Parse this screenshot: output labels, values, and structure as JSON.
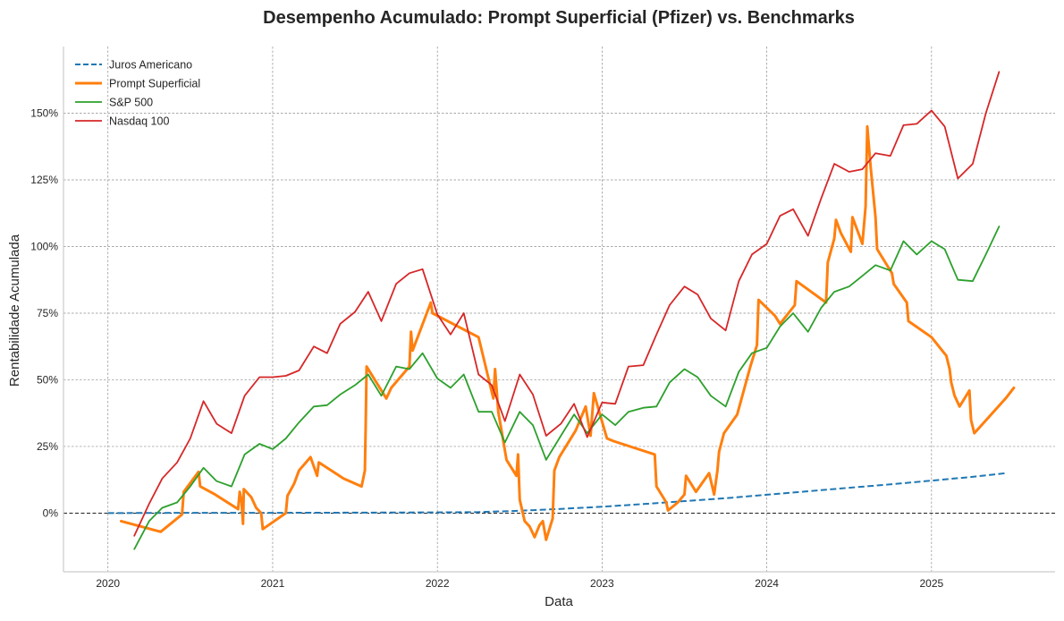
{
  "chart_data": {
    "type": "line",
    "title": "Desempenho Acumulado: Prompt Superficial (Pfizer) vs. Benchmarks",
    "xlabel": "Data",
    "ylabel": "Rentabilidade Acumulada",
    "x_ticks": [
      "2020",
      "2021",
      "2022",
      "2023",
      "2024",
      "2025"
    ],
    "y_ticks": [
      "0%",
      "25%",
      "50%",
      "75%",
      "100%",
      "125%",
      "150%"
    ],
    "y_tick_values": [
      0,
      25,
      50,
      75,
      100,
      125,
      150
    ],
    "xlim": [
      2019.73,
      2025.75
    ],
    "ylim": [
      -22,
      175
    ],
    "grid": true,
    "legend_position": "top-left",
    "reference_line": 0,
    "series": [
      {
        "name": "Juros Americano",
        "color": "#1f77b4",
        "style": "dashed",
        "width": 2,
        "points": [
          [
            2020.0,
            0
          ],
          [
            2020.5,
            0.1
          ],
          [
            2021.0,
            0.1
          ],
          [
            2021.5,
            0.2
          ],
          [
            2022.0,
            0.3
          ],
          [
            2022.25,
            0.4
          ],
          [
            2022.5,
            0.9
          ],
          [
            2022.75,
            1.6
          ],
          [
            2023.0,
            2.4
          ],
          [
            2023.25,
            3.4
          ],
          [
            2023.5,
            4.5
          ],
          [
            2023.75,
            5.6
          ],
          [
            2024.0,
            6.9
          ],
          [
            2024.25,
            8.2
          ],
          [
            2024.5,
            9.5
          ],
          [
            2024.75,
            10.8
          ],
          [
            2025.0,
            12.2
          ],
          [
            2025.25,
            13.6
          ],
          [
            2025.45,
            15.0
          ]
        ]
      },
      {
        "name": "Prompt Superficial",
        "color": "#ff7f0e",
        "style": "solid",
        "width": 3,
        "points": [
          [
            2020.08,
            -3
          ],
          [
            2020.32,
            -7
          ],
          [
            2020.45,
            -0.5
          ],
          [
            2020.46,
            8
          ],
          [
            2020.55,
            15.5
          ],
          [
            2020.56,
            10
          ],
          [
            2020.65,
            7
          ],
          [
            2020.79,
            1.5
          ],
          [
            2020.8,
            8
          ],
          [
            2020.81,
            5
          ],
          [
            2020.82,
            -4
          ],
          [
            2020.825,
            9
          ],
          [
            2020.87,
            6
          ],
          [
            2020.9,
            2
          ],
          [
            2020.93,
            0
          ],
          [
            2020.94,
            -6
          ],
          [
            2021.08,
            0
          ],
          [
            2021.09,
            6.5
          ],
          [
            2021.13,
            11
          ],
          [
            2021.16,
            16
          ],
          [
            2021.23,
            21
          ],
          [
            2021.27,
            14
          ],
          [
            2021.28,
            19
          ],
          [
            2021.33,
            17
          ],
          [
            2021.43,
            13
          ],
          [
            2021.54,
            10
          ],
          [
            2021.56,
            16
          ],
          [
            2021.565,
            33
          ],
          [
            2021.57,
            55
          ],
          [
            2021.63,
            49
          ],
          [
            2021.69,
            43
          ],
          [
            2021.72,
            47
          ],
          [
            2021.83,
            55
          ],
          [
            2021.84,
            68
          ],
          [
            2021.85,
            61
          ],
          [
            2021.96,
            79
          ],
          [
            2021.97,
            75
          ],
          [
            2022.25,
            66
          ],
          [
            2022.34,
            43
          ],
          [
            2022.35,
            54
          ],
          [
            2022.37,
            38
          ],
          [
            2022.42,
            20
          ],
          [
            2022.48,
            14
          ],
          [
            2022.49,
            22
          ],
          [
            2022.5,
            5
          ],
          [
            2022.53,
            -3
          ],
          [
            2022.56,
            -5
          ],
          [
            2022.59,
            -9
          ],
          [
            2022.62,
            -4.5
          ],
          [
            2022.64,
            -3
          ],
          [
            2022.66,
            -10
          ],
          [
            2022.7,
            -2
          ],
          [
            2022.71,
            16
          ],
          [
            2022.74,
            21
          ],
          [
            2022.84,
            31
          ],
          [
            2022.9,
            40
          ],
          [
            2022.93,
            29
          ],
          [
            2022.95,
            45
          ],
          [
            2023.02,
            30
          ],
          [
            2023.03,
            28
          ],
          [
            2023.07,
            27
          ],
          [
            2023.32,
            22
          ],
          [
            2023.33,
            10
          ],
          [
            2023.39,
            4
          ],
          [
            2023.4,
            1
          ],
          [
            2023.46,
            4
          ],
          [
            2023.5,
            7
          ],
          [
            2023.51,
            14
          ],
          [
            2023.57,
            8
          ],
          [
            2023.65,
            15
          ],
          [
            2023.68,
            7
          ],
          [
            2023.7,
            16
          ],
          [
            2023.71,
            23
          ],
          [
            2023.74,
            30
          ],
          [
            2023.82,
            37
          ],
          [
            2023.9,
            55
          ],
          [
            2023.94,
            63
          ],
          [
            2023.95,
            80
          ],
          [
            2024.05,
            74
          ],
          [
            2024.08,
            71
          ],
          [
            2024.17,
            78
          ],
          [
            2024.18,
            87
          ],
          [
            2024.36,
            79
          ],
          [
            2024.37,
            94
          ],
          [
            2024.41,
            103
          ],
          [
            2024.42,
            110
          ],
          [
            2024.45,
            105
          ],
          [
            2024.51,
            98
          ],
          [
            2024.52,
            111
          ],
          [
            2024.58,
            101
          ],
          [
            2024.6,
            115
          ],
          [
            2024.61,
            145
          ],
          [
            2024.63,
            130
          ],
          [
            2024.66,
            111
          ],
          [
            2024.67,
            99
          ],
          [
            2024.76,
            90
          ],
          [
            2024.77,
            86
          ],
          [
            2024.85,
            79
          ],
          [
            2024.86,
            72
          ],
          [
            2025.0,
            66
          ],
          [
            2025.09,
            59
          ],
          [
            2025.11,
            54
          ],
          [
            2025.12,
            49
          ],
          [
            2025.14,
            44
          ],
          [
            2025.17,
            40
          ],
          [
            2025.23,
            46
          ],
          [
            2025.24,
            35
          ],
          [
            2025.26,
            30
          ],
          [
            2025.45,
            43
          ],
          [
            2025.5,
            47
          ]
        ]
      },
      {
        "name": "S&P 500",
        "color": "#2ca02c",
        "style": "solid",
        "width": 1.8,
        "points": [
          [
            2020.16,
            -13.5
          ],
          [
            2020.25,
            -3
          ],
          [
            2020.33,
            2
          ],
          [
            2020.42,
            4
          ],
          [
            2020.5,
            10
          ],
          [
            2020.58,
            17
          ],
          [
            2020.66,
            12
          ],
          [
            2020.75,
            10
          ],
          [
            2020.83,
            22
          ],
          [
            2020.92,
            26
          ],
          [
            2021.0,
            24
          ],
          [
            2021.08,
            28
          ],
          [
            2021.16,
            34
          ],
          [
            2021.25,
            40
          ],
          [
            2021.33,
            40.5
          ],
          [
            2021.41,
            44.5
          ],
          [
            2021.5,
            48
          ],
          [
            2021.58,
            52
          ],
          [
            2021.66,
            44
          ],
          [
            2021.75,
            55
          ],
          [
            2021.83,
            54
          ],
          [
            2021.91,
            60
          ],
          [
            2022.0,
            50.5
          ],
          [
            2022.08,
            47
          ],
          [
            2022.16,
            52
          ],
          [
            2022.25,
            38
          ],
          [
            2022.33,
            38
          ],
          [
            2022.41,
            26.5
          ],
          [
            2022.5,
            38
          ],
          [
            2022.58,
            33
          ],
          [
            2022.66,
            20
          ],
          [
            2022.75,
            29
          ],
          [
            2022.83,
            37
          ],
          [
            2022.91,
            30
          ],
          [
            2023.0,
            37
          ],
          [
            2023.08,
            33
          ],
          [
            2023.16,
            38
          ],
          [
            2023.25,
            39.5
          ],
          [
            2023.33,
            40
          ],
          [
            2023.41,
            49
          ],
          [
            2023.5,
            54
          ],
          [
            2023.58,
            51
          ],
          [
            2023.66,
            44
          ],
          [
            2023.75,
            40
          ],
          [
            2023.83,
            53
          ],
          [
            2023.91,
            60
          ],
          [
            2024.0,
            62
          ],
          [
            2024.08,
            70
          ],
          [
            2024.16,
            75
          ],
          [
            2024.25,
            68
          ],
          [
            2024.33,
            77
          ],
          [
            2024.41,
            83
          ],
          [
            2024.5,
            85
          ],
          [
            2024.58,
            89
          ],
          [
            2024.66,
            93
          ],
          [
            2024.75,
            91
          ],
          [
            2024.83,
            102
          ],
          [
            2024.91,
            97
          ],
          [
            2025.0,
            102
          ],
          [
            2025.08,
            99
          ],
          [
            2025.16,
            87.5
          ],
          [
            2025.25,
            87
          ],
          [
            2025.33,
            97
          ],
          [
            2025.41,
            107.5
          ]
        ]
      },
      {
        "name": "Nasdaq 100",
        "color": "#d62728",
        "style": "solid",
        "width": 1.8,
        "points": [
          [
            2020.16,
            -8.5
          ],
          [
            2020.25,
            3.5
          ],
          [
            2020.33,
            13
          ],
          [
            2020.42,
            19
          ],
          [
            2020.5,
            28
          ],
          [
            2020.58,
            42
          ],
          [
            2020.66,
            33.5
          ],
          [
            2020.75,
            30
          ],
          [
            2020.83,
            44
          ],
          [
            2020.92,
            51
          ],
          [
            2021.0,
            51
          ],
          [
            2021.08,
            51.5
          ],
          [
            2021.16,
            53.5
          ],
          [
            2021.25,
            62.5
          ],
          [
            2021.33,
            60
          ],
          [
            2021.41,
            71
          ],
          [
            2021.5,
            75.5
          ],
          [
            2021.58,
            83
          ],
          [
            2021.66,
            72
          ],
          [
            2021.75,
            86
          ],
          [
            2021.83,
            90
          ],
          [
            2021.91,
            91.5
          ],
          [
            2022.0,
            74.5
          ],
          [
            2022.08,
            67
          ],
          [
            2022.16,
            75
          ],
          [
            2022.25,
            52
          ],
          [
            2022.33,
            48
          ],
          [
            2022.41,
            34.5
          ],
          [
            2022.5,
            52
          ],
          [
            2022.58,
            44.5
          ],
          [
            2022.66,
            29
          ],
          [
            2022.75,
            33.5
          ],
          [
            2022.83,
            41
          ],
          [
            2022.91,
            28.5
          ],
          [
            2023.0,
            41.5
          ],
          [
            2023.08,
            41
          ],
          [
            2023.16,
            55
          ],
          [
            2023.25,
            55.5
          ],
          [
            2023.33,
            67
          ],
          [
            2023.41,
            78
          ],
          [
            2023.5,
            85
          ],
          [
            2023.58,
            82
          ],
          [
            2023.66,
            73
          ],
          [
            2023.75,
            68.5
          ],
          [
            2023.83,
            87
          ],
          [
            2023.91,
            97
          ],
          [
            2024.0,
            101
          ],
          [
            2024.08,
            111.5
          ],
          [
            2024.16,
            114
          ],
          [
            2024.25,
            104
          ],
          [
            2024.33,
            118
          ],
          [
            2024.41,
            131
          ],
          [
            2024.5,
            128
          ],
          [
            2024.58,
            129
          ],
          [
            2024.66,
            135
          ],
          [
            2024.75,
            134
          ],
          [
            2024.83,
            145.5
          ],
          [
            2024.91,
            146
          ],
          [
            2025.0,
            151
          ],
          [
            2025.08,
            145
          ],
          [
            2025.16,
            125.5
          ],
          [
            2025.25,
            131
          ],
          [
            2025.33,
            150
          ],
          [
            2025.41,
            165.5
          ]
        ]
      }
    ]
  }
}
